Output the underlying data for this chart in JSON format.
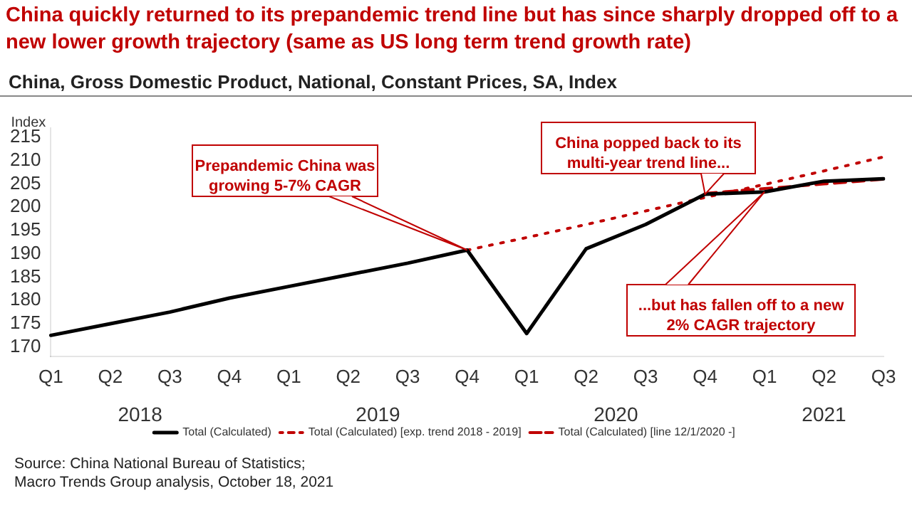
{
  "chart_data": {
    "type": "line",
    "title": "China quickly returned to its prepandemic trend line but has since sharply dropped off to a new lower growth trajectory (same as US long term trend growth rate)",
    "subtitle": "China, Gross Domestic Product, National, Constant Prices, SA, Index",
    "ylabel": "Index",
    "categories": [
      "Q1",
      "Q2",
      "Q3",
      "Q4",
      "Q1",
      "Q2",
      "Q3",
      "Q4",
      "Q1",
      "Q2",
      "Q3",
      "Q4",
      "Q1",
      "Q2",
      "Q3"
    ],
    "series": [
      {
        "name": "Total (Calculated)",
        "color": "#000000",
        "line_style": "solid",
        "values": [
          172.5,
          175,
          177.5,
          180.5,
          183,
          185.5,
          188,
          190.8,
          172.9,
          191.1,
          196.3,
          202.8,
          203.3,
          205.6,
          206.1
        ]
      },
      {
        "name": "Total (Calculated) [exp. trend 2018 - 2019]",
        "color": "#c00000",
        "line_style": "dotted",
        "values": [
          null,
          null,
          null,
          null,
          null,
          null,
          null,
          190.8,
          193.5,
          196.3,
          199.2,
          202.1,
          204.9,
          207.8,
          210.8
        ]
      },
      {
        "name": "Total (Calculated) [line 12/1/2020 -]",
        "color": "#c00000",
        "line_style": "dashed",
        "values": [
          null,
          null,
          null,
          null,
          null,
          null,
          null,
          null,
          null,
          null,
          null,
          203,
          204,
          205,
          206
        ]
      }
    ],
    "ylim": [
      168,
      217
    ],
    "yticks": [
      170,
      175,
      180,
      185,
      190,
      195,
      200,
      205,
      210,
      215
    ],
    "grid": false,
    "legend": "bottom",
    "marker": "none",
    "annotations": [
      "2018",
      "2019",
      "2020",
      "2021",
      "Prepandemic China was\ngrowing 5-7% CAGR",
      "China popped back to its\nmulti-year trend line...",
      "...but has fallen off to a new\n2% CAGR trajectory",
      "Source: China National Bureau of Statistics;\nMacro Trends Group analysis, October 18, 2021"
    ]
  }
}
